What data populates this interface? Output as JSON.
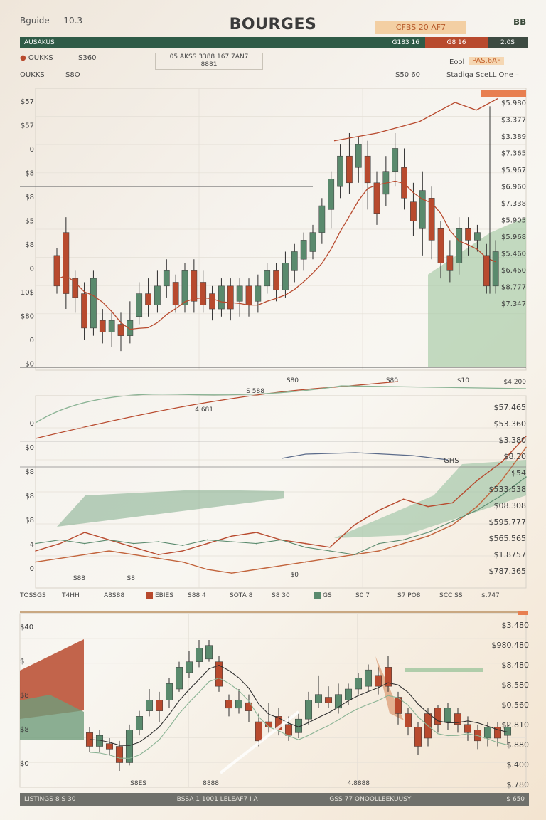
{
  "header": {
    "topline": "Bguide — 10.3",
    "title": "BOURGES",
    "badge": "CFBS 20 AF7",
    "top_right": "BB",
    "bar_left": "AUSAKUS",
    "bar_value": "G183 16",
    "bar_red": "G8 16",
    "bar_dark": "2.0S",
    "sub_left_1": "OUKKS",
    "sub_left_2": "S360",
    "sub_left_3": "OUKKS",
    "sub_left_4": "S8O",
    "info_line1": "05 AKSS 3388 167 7AN7",
    "info_line2": "8881",
    "sub_mid": "S50 60",
    "sub_right_1": "Eool",
    "sub_right_badge": "PAS.6AF",
    "sub_right_2": "Stadiga SceLL One –"
  },
  "legend": {
    "items": [
      "TOSSGS",
      "T4HH",
      "A8S88",
      "EBIES",
      "S88 4",
      "SOTA 8",
      "S8 30",
      "GS",
      "S0 7",
      "S7 PO8",
      "SCC SS",
      "$.747"
    ]
  },
  "footer": {
    "left": "LISTINGS 8 S 30",
    "mid": "BSSA 1 1001 LELEAF7 I A",
    "right": "GSS 77 ONOOLLEEKUUSY",
    "end": "$ 650"
  },
  "chart_data": [
    {
      "type": "candlestick",
      "name": "",
      "y_labels_left": [
        "$57",
        "$57",
        "0",
        "$8",
        "$8",
        "$5",
        "$8",
        "0",
        "10$",
        "$80",
        "0",
        "$0"
      ],
      "y_labels_right": [
        "$5.980",
        "$3.377",
        "$3.389",
        "$7.365",
        "$5.967",
        "$6.960",
        "$7.338",
        "$5.905",
        "$5.968",
        "$5.460",
        "$6.460",
        "$8.777",
        "$7.347"
      ],
      "annotations": [
        "S 588",
        "S80",
        "S80",
        "$10",
        "4 681"
      ],
      "corner_label": "$4.200",
      "candles": [
        {
          "o": 60,
          "c": 44,
          "h": 64,
          "l": 40
        },
        {
          "o": 72,
          "c": 40,
          "h": 80,
          "l": 32
        },
        {
          "o": 48,
          "c": 38,
          "h": 52,
          "l": 30
        },
        {
          "o": 40,
          "c": 22,
          "h": 46,
          "l": 16
        },
        {
          "o": 22,
          "c": 48,
          "h": 52,
          "l": 18
        },
        {
          "o": 26,
          "c": 20,
          "h": 32,
          "l": 14
        },
        {
          "o": 20,
          "c": 26,
          "h": 30,
          "l": 12
        },
        {
          "o": 24,
          "c": 18,
          "h": 30,
          "l": 10
        },
        {
          "o": 18,
          "c": 26,
          "h": 36,
          "l": 14
        },
        {
          "o": 28,
          "c": 40,
          "h": 46,
          "l": 24
        },
        {
          "o": 40,
          "c": 34,
          "h": 48,
          "l": 28
        },
        {
          "o": 34,
          "c": 44,
          "h": 52,
          "l": 30
        },
        {
          "o": 44,
          "c": 52,
          "h": 58,
          "l": 38
        },
        {
          "o": 46,
          "c": 34,
          "h": 50,
          "l": 30
        },
        {
          "o": 34,
          "c": 52,
          "h": 56,
          "l": 30
        },
        {
          "o": 52,
          "c": 36,
          "h": 58,
          "l": 30
        },
        {
          "o": 46,
          "c": 34,
          "h": 52,
          "l": 30
        },
        {
          "o": 40,
          "c": 32,
          "h": 44,
          "l": 26
        },
        {
          "o": 32,
          "c": 44,
          "h": 48,
          "l": 28
        },
        {
          "o": 44,
          "c": 32,
          "h": 48,
          "l": 26
        },
        {
          "o": 36,
          "c": 44,
          "h": 48,
          "l": 28
        },
        {
          "o": 44,
          "c": 34,
          "h": 48,
          "l": 28
        },
        {
          "o": 36,
          "c": 44,
          "h": 50,
          "l": 30
        },
        {
          "o": 44,
          "c": 52,
          "h": 56,
          "l": 40
        },
        {
          "o": 52,
          "c": 42,
          "h": 56,
          "l": 36
        },
        {
          "o": 42,
          "c": 56,
          "h": 62,
          "l": 38
        },
        {
          "o": 52,
          "c": 62,
          "h": 66,
          "l": 46
        },
        {
          "o": 58,
          "c": 68,
          "h": 72,
          "l": 52
        },
        {
          "o": 62,
          "c": 72,
          "h": 76,
          "l": 58
        },
        {
          "o": 72,
          "c": 86,
          "h": 90,
          "l": 66
        },
        {
          "o": 84,
          "c": 100,
          "h": 104,
          "l": 74
        },
        {
          "o": 96,
          "c": 112,
          "h": 118,
          "l": 90
        },
        {
          "o": 112,
          "c": 98,
          "h": 124,
          "l": 92
        },
        {
          "o": 106,
          "c": 118,
          "h": 122,
          "l": 98
        },
        {
          "o": 112,
          "c": 98,
          "h": 120,
          "l": 84
        },
        {
          "o": 98,
          "c": 82,
          "h": 104,
          "l": 76
        },
        {
          "o": 92,
          "c": 104,
          "h": 112,
          "l": 86
        },
        {
          "o": 104,
          "c": 116,
          "h": 124,
          "l": 96
        },
        {
          "o": 106,
          "c": 90,
          "h": 116,
          "l": 84
        },
        {
          "o": 88,
          "c": 78,
          "h": 98,
          "l": 70
        },
        {
          "o": 74,
          "c": 94,
          "h": 104,
          "l": 60
        },
        {
          "o": 90,
          "c": 68,
          "h": 96,
          "l": 58
        },
        {
          "o": 74,
          "c": 56,
          "h": 78,
          "l": 48
        },
        {
          "o": 60,
          "c": 52,
          "h": 68,
          "l": 46
        },
        {
          "o": 56,
          "c": 74,
          "h": 80,
          "l": 50
        },
        {
          "o": 74,
          "c": 68,
          "h": 80,
          "l": 60
        },
        {
          "o": 68,
          "c": 72,
          "h": 76,
          "l": 62
        },
        {
          "o": 60,
          "c": 44,
          "h": 66,
          "l": 40
        },
        {
          "o": 44,
          "c": 62,
          "h": 68,
          "l": 40
        }
      ],
      "ylim": [
        0,
        140
      ]
    },
    {
      "type": "line",
      "name": "",
      "y_labels_left": [
        "0",
        "$0",
        "$8",
        "$8",
        "$8",
        "4",
        "0"
      ],
      "y_labels_right": [
        "$57.465",
        "$53.360",
        "$3.380",
        "$8.30",
        "$54",
        "$533.538",
        "$08.308",
        "$595.777",
        "$565.565",
        "$1.8757",
        "$787.365"
      ],
      "annotations": [
        "GHS",
        "S88",
        "S8",
        "$0"
      ],
      "x": [
        0,
        1,
        2,
        3,
        4,
        5,
        6,
        7,
        8,
        9,
        10,
        11,
        12,
        13,
        14,
        15,
        16,
        17,
        18,
        19,
        20
      ],
      "series": [
        {
          "values": [
            20,
            24,
            30,
            26,
            22,
            18,
            20,
            24,
            28,
            30,
            26,
            24,
            22,
            34,
            42,
            48,
            44,
            46,
            58,
            68,
            82
          ]
        },
        {
          "values": [
            14,
            16,
            18,
            20,
            18,
            16,
            14,
            10,
            8,
            10,
            12,
            14,
            16,
            18,
            20,
            24,
            28,
            34,
            44,
            58,
            76
          ]
        },
        {
          "values": [
            24,
            26,
            24,
            26,
            24,
            25,
            23,
            26,
            25,
            24,
            26,
            22,
            20,
            18,
            24,
            26,
            30,
            36,
            42,
            50,
            60
          ]
        }
      ],
      "ylim": [
        0,
        100
      ]
    },
    {
      "type": "candlestick",
      "name": "",
      "y_labels_left": [
        "$40",
        "$",
        "$8",
        "$8",
        "$0"
      ],
      "y_labels_right": [
        "$3.480",
        "$980.480",
        "$8.480",
        "$8.580",
        "$0.560",
        "$2.810",
        "$.880",
        "$.400",
        "$.780"
      ],
      "annotations": [
        "S8ES",
        "8888",
        "4.8888"
      ],
      "candles": [
        {
          "o": 40,
          "c": 30,
          "h": 44,
          "l": 26
        },
        {
          "o": 30,
          "c": 38,
          "h": 42,
          "l": 26
        },
        {
          "o": 32,
          "c": 28,
          "h": 36,
          "l": 24
        },
        {
          "o": 30,
          "c": 18,
          "h": 34,
          "l": 12
        },
        {
          "o": 18,
          "c": 42,
          "h": 46,
          "l": 16
        },
        {
          "o": 42,
          "c": 52,
          "h": 56,
          "l": 38
        },
        {
          "o": 56,
          "c": 64,
          "h": 72,
          "l": 52
        },
        {
          "o": 64,
          "c": 56,
          "h": 70,
          "l": 48
        },
        {
          "o": 64,
          "c": 76,
          "h": 80,
          "l": 58
        },
        {
          "o": 72,
          "c": 88,
          "h": 92,
          "l": 70
        },
        {
          "o": 84,
          "c": 92,
          "h": 100,
          "l": 80
        },
        {
          "o": 92,
          "c": 102,
          "h": 108,
          "l": 88
        },
        {
          "o": 94,
          "c": 104,
          "h": 108,
          "l": 92
        },
        {
          "o": 92,
          "c": 74,
          "h": 96,
          "l": 70
        },
        {
          "o": 64,
          "c": 58,
          "h": 68,
          "l": 52
        },
        {
          "o": 58,
          "c": 64,
          "h": 72,
          "l": 54
        },
        {
          "o": 62,
          "c": 56,
          "h": 68,
          "l": 48
        },
        {
          "o": 48,
          "c": 34,
          "h": 54,
          "l": 30
        },
        {
          "o": 48,
          "c": 44,
          "h": 62,
          "l": 40
        },
        {
          "o": 52,
          "c": 42,
          "h": 58,
          "l": 38
        },
        {
          "o": 46,
          "c": 38,
          "h": 52,
          "l": 34
        },
        {
          "o": 40,
          "c": 50,
          "h": 54,
          "l": 36
        },
        {
          "o": 50,
          "c": 64,
          "h": 70,
          "l": 46
        },
        {
          "o": 62,
          "c": 68,
          "h": 82,
          "l": 58
        },
        {
          "o": 66,
          "c": 62,
          "h": 74,
          "l": 58
        },
        {
          "o": 58,
          "c": 68,
          "h": 76,
          "l": 54
        },
        {
          "o": 64,
          "c": 72,
          "h": 76,
          "l": 60
        },
        {
          "o": 72,
          "c": 80,
          "h": 84,
          "l": 68
        },
        {
          "o": 74,
          "c": 86,
          "h": 90,
          "l": 70
        },
        {
          "o": 82,
          "c": 74,
          "h": 88,
          "l": 68
        },
        {
          "o": 88,
          "c": 74,
          "h": 96,
          "l": 70
        },
        {
          "o": 66,
          "c": 54,
          "h": 70,
          "l": 46
        },
        {
          "o": 54,
          "c": 44,
          "h": 58,
          "l": 38
        },
        {
          "o": 44,
          "c": 30,
          "h": 48,
          "l": 24
        },
        {
          "o": 54,
          "c": 36,
          "h": 58,
          "l": 30
        },
        {
          "o": 58,
          "c": 46,
          "h": 60,
          "l": 40
        },
        {
          "o": 48,
          "c": 58,
          "h": 62,
          "l": 42
        },
        {
          "o": 54,
          "c": 46,
          "h": 58,
          "l": 40
        },
        {
          "o": 46,
          "c": 40,
          "h": 52,
          "l": 34
        },
        {
          "o": 42,
          "c": 34,
          "h": 46,
          "l": 28
        },
        {
          "o": 36,
          "c": 44,
          "h": 48,
          "l": 30
        },
        {
          "o": 44,
          "c": 36,
          "h": 48,
          "l": 30
        },
        {
          "o": 38,
          "c": 44,
          "h": 48,
          "l": 32
        }
      ],
      "ylim": [
        0,
        120
      ]
    }
  ]
}
